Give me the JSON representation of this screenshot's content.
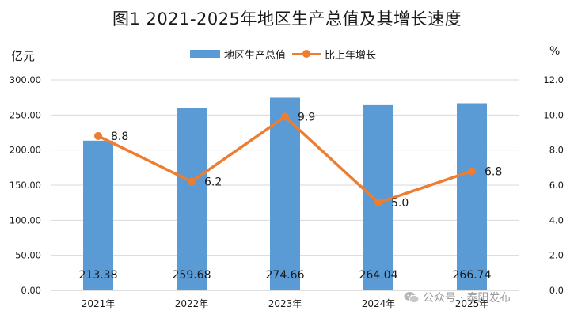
{
  "chart_data": {
    "type": "bar",
    "title": "图1  2021-2025年地区生产总值及其增长速度",
    "categories": [
      "2021年",
      "2022年",
      "2023年",
      "2024年",
      "2025年"
    ],
    "series": [
      {
        "name": "地区生产总值",
        "type": "bar",
        "axis": "left",
        "values": [
          213.38,
          259.68,
          274.66,
          264.04,
          266.74
        ],
        "color": "#5b9bd5"
      },
      {
        "name": "比上年增长",
        "type": "line",
        "axis": "right",
        "values": [
          8.8,
          6.2,
          9.9,
          5.0,
          6.8
        ],
        "color": "#ed7d31"
      }
    ],
    "left_axis": {
      "unit": "亿元",
      "ylim": [
        0,
        300
      ],
      "ticks": [
        "0.00",
        "50.00",
        "100.00",
        "150.00",
        "200.00",
        "250.00",
        "300.00"
      ]
    },
    "right_axis": {
      "unit": "%",
      "ylim": [
        0,
        12
      ],
      "ticks": [
        "0.0",
        "2.0",
        "4.0",
        "6.0",
        "8.0",
        "10.0",
        "12.0"
      ]
    },
    "bar_value_labels": [
      "213.38",
      "259.68",
      "274.66",
      "264.04",
      "266.74"
    ],
    "line_value_labels": [
      "8.8",
      "6.2",
      "9.9",
      "5.0",
      "6.8"
    ],
    "grid": true,
    "legend_position": "top"
  },
  "watermark": {
    "text": "公众号 · 泰阳发布",
    "icon": "wechat-icon"
  }
}
